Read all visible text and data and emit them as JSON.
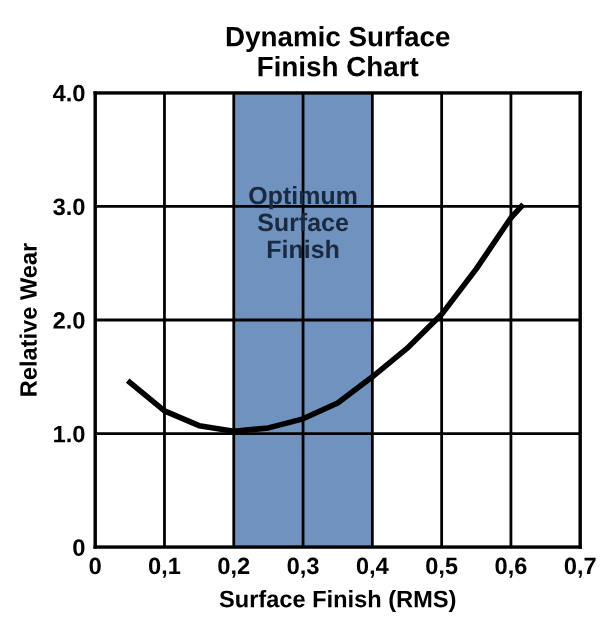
{
  "chart_data": {
    "type": "line",
    "title": "Dynamic Surface\nFinish Chart",
    "xlabel": "Surface Finish (RMS)",
    "ylabel": "Relative Wear",
    "x": [
      0.05,
      0.1,
      0.15,
      0.2,
      0.25,
      0.3,
      0.35,
      0.4,
      0.45,
      0.5,
      0.55,
      0.6,
      0.615
    ],
    "series": [
      {
        "color": "#000000",
        "values": [
          1.45,
          1.2,
          1.07,
          1.02,
          1.05,
          1.13,
          1.27,
          1.5,
          1.75,
          2.05,
          2.45,
          2.9,
          3.0
        ]
      }
    ],
    "xlim": [
      0,
      0.7
    ],
    "ylim": [
      0,
      4
    ],
    "xticks": [
      0,
      {
        "value": 0.1,
        "label": "0,1"
      },
      {
        "value": 0.2,
        "label": "0,2"
      },
      {
        "value": 0.3,
        "label": "0,3"
      },
      {
        "value": 0.4,
        "label": "0,4"
      },
      {
        "value": 0.5,
        "label": "0,5"
      },
      {
        "value": 0.6,
        "label": "0,6"
      },
      {
        "value": 0.7,
        "label": "0,7"
      }
    ],
    "yticks": [
      0,
      {
        "value": 1,
        "label": "1.0"
      },
      {
        "value": 2,
        "label": "2.0"
      },
      {
        "value": 3,
        "label": "3.0"
      },
      {
        "value": 4,
        "label": "4.0"
      }
    ],
    "bands": [
      {
        "axis": "x",
        "from": 0.2,
        "to": 0.4,
        "label": "Optimum\nSurface\nFinish",
        "color": "#7092be"
      }
    ],
    "grid": true,
    "marker": "none",
    "line_style": "solid"
  }
}
